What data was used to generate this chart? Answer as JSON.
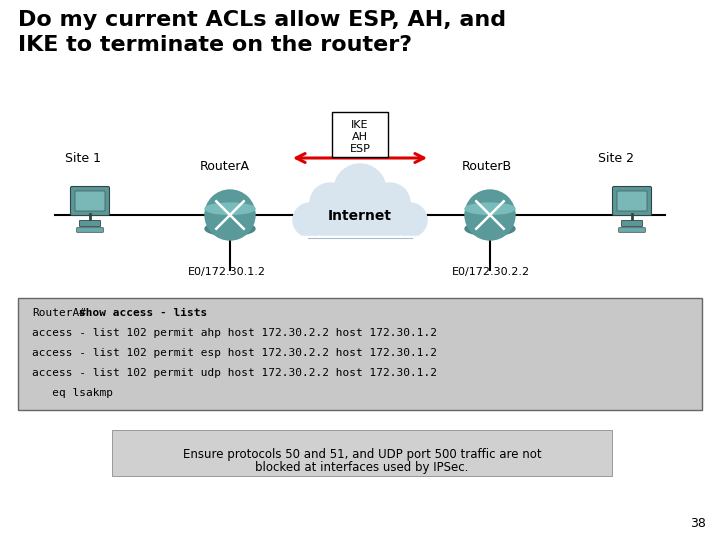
{
  "title": "Do my current ACLs allow ESP, AH, and\nIKE to terminate on the router?",
  "title_fontsize": 16,
  "site1_label": "Site 1",
  "site2_label": "Site 2",
  "routerA_label": "RouterA",
  "routerB_label": "RouterB",
  "internet_label": "Internet",
  "e0_left": "E0/172.30.1.2",
  "e0_right": "E0/172.30.2.2",
  "ike_label": "IKE",
  "ah_label": "AH",
  "esp_label": "ESP",
  "code_line0_pre": "RouterA#",
  "code_line0_bold": "show access - lists",
  "code_lines": [
    "access - list 102 permit ahp host 172.30.2.2 host 172.30.1.2",
    "access - list 102 permit esp host 172.30.2.2 host 172.30.1.2",
    "access - list 102 permit udp host 172.30.2.2 host 172.30.1.2",
    "   eq lsakmp"
  ],
  "footnote_line1": "Ensure protocols 50 and 51, and UDP port 500 traffic are not",
  "footnote_line2": "blocked at interfaces used by IPSec.",
  "page_number": "38",
  "bg_color": "#ffffff",
  "code_bg": "#c8c8c8",
  "footnote_bg": "#d0d0d0",
  "arrow_color": "#dd0000",
  "router_color_top": "#5a9a9a",
  "router_color_bottom": "#4a8888",
  "cloud_color": "#d8e4ee",
  "cloud_edge": "#aabbcc",
  "computer_color": "#5a9898"
}
